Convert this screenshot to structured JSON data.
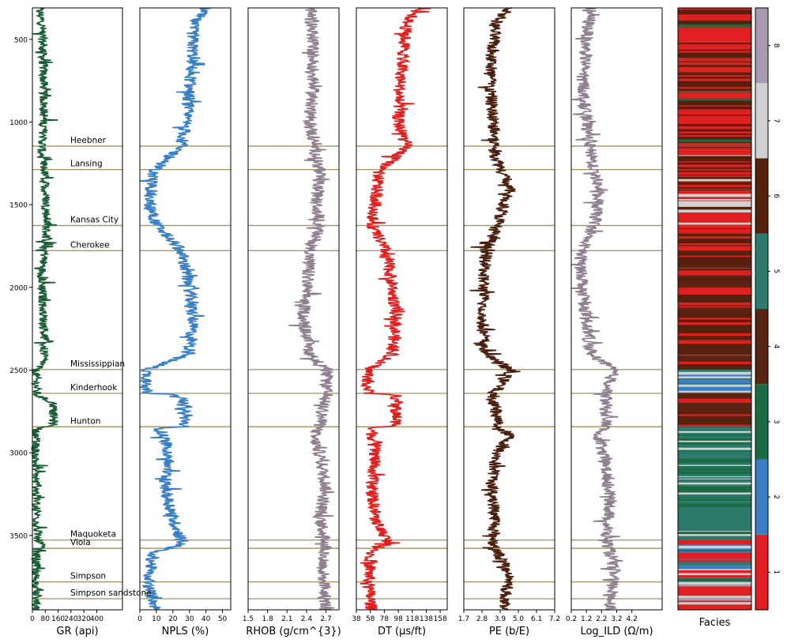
{
  "chart_data": {
    "type": "well-log",
    "depth_axis": {
      "inverted": true,
      "range": [
        3950,
        310
      ],
      "ticks": [
        500,
        1000,
        1500,
        2000,
        2500,
        3000,
        3500
      ],
      "tick_labels": [
        "500",
        "1000",
        "1500",
        "2000",
        "2500",
        "3000",
        "3500"
      ]
    },
    "tracks": [
      {
        "name": "GR",
        "xlabel": "GR (api)",
        "color": "#1b5e35",
        "xlim": [
          0,
          560
        ],
        "ticks": [
          0,
          80,
          160,
          240,
          320,
          400
        ],
        "tick_labels": [
          "0",
          "80",
          "160",
          "240",
          "320",
          "400"
        ],
        "profile": [
          [
            310,
            40
          ],
          [
            400,
            60
          ],
          [
            600,
            65
          ],
          [
            800,
            70
          ],
          [
            1000,
            72
          ],
          [
            1100,
            65
          ],
          [
            1200,
            55
          ],
          [
            1300,
            75
          ],
          [
            1400,
            80
          ],
          [
            1500,
            85
          ],
          [
            1600,
            90
          ],
          [
            1700,
            85
          ],
          [
            1780,
            80
          ],
          [
            1900,
            60
          ],
          [
            2100,
            65
          ],
          [
            2300,
            75
          ],
          [
            2450,
            70
          ],
          [
            2500,
            20
          ],
          [
            2600,
            25
          ],
          [
            2650,
            25
          ],
          [
            2700,
            130
          ],
          [
            2840,
            130
          ],
          [
            2850,
            20
          ],
          [
            3000,
            18
          ],
          [
            3200,
            22
          ],
          [
            3400,
            30
          ],
          [
            3520,
            30
          ],
          [
            3560,
            60
          ],
          [
            3600,
            25
          ],
          [
            3800,
            20
          ],
          [
            3950,
            20
          ]
        ]
      },
      {
        "name": "NPLS",
        "xlabel": "NPLS (%)",
        "color": "#3a7fc4",
        "xlim": [
          0,
          55
        ],
        "ticks": [
          0,
          10,
          20,
          30,
          40,
          50
        ],
        "tick_labels": [
          "0",
          "10",
          "20",
          "30",
          "40",
          "50"
        ],
        "profile": [
          [
            310,
            40
          ],
          [
            400,
            32
          ],
          [
            600,
            32
          ],
          [
            800,
            30
          ],
          [
            1000,
            28
          ],
          [
            1150,
            25
          ],
          [
            1300,
            8
          ],
          [
            1500,
            6
          ],
          [
            1620,
            10
          ],
          [
            1780,
            25
          ],
          [
            2000,
            30
          ],
          [
            2200,
            32
          ],
          [
            2400,
            30
          ],
          [
            2500,
            4
          ],
          [
            2640,
            5
          ],
          [
            2650,
            25
          ],
          [
            2840,
            28
          ],
          [
            2850,
            12
          ],
          [
            3000,
            18
          ],
          [
            3200,
            15
          ],
          [
            3400,
            20
          ],
          [
            3520,
            25
          ],
          [
            3560,
            25
          ],
          [
            3600,
            8
          ],
          [
            3800,
            5
          ],
          [
            3950,
            10
          ]
        ]
      },
      {
        "name": "RHOB",
        "xlabel": "RHOB (g/cm^{3})",
        "color": "#8f7f8f",
        "xlim": [
          1.5,
          2.9
        ],
        "ticks": [
          1.5,
          1.8,
          2.1,
          2.4,
          2.7
        ],
        "tick_labels": [
          "1.5",
          "1.8",
          "2.1",
          "2.4",
          "2.7"
        ],
        "profile": [
          [
            310,
            2.45
          ],
          [
            500,
            2.5
          ],
          [
            800,
            2.5
          ],
          [
            1000,
            2.45
          ],
          [
            1200,
            2.55
          ],
          [
            1300,
            2.6
          ],
          [
            1500,
            2.55
          ],
          [
            1620,
            2.6
          ],
          [
            1800,
            2.45
          ],
          [
            2000,
            2.4
          ],
          [
            2200,
            2.35
          ],
          [
            2400,
            2.45
          ],
          [
            2500,
            2.7
          ],
          [
            2650,
            2.7
          ],
          [
            2840,
            2.6
          ],
          [
            2900,
            2.5
          ],
          [
            3000,
            2.6
          ],
          [
            3200,
            2.7
          ],
          [
            3400,
            2.6
          ],
          [
            3550,
            2.7
          ],
          [
            3700,
            2.65
          ],
          [
            3950,
            2.7
          ]
        ]
      },
      {
        "name": "DT",
        "xlabel": "DT (µs/ft)",
        "color": "#e02020",
        "xlim": [
          38,
          168
        ],
        "ticks": [
          38,
          58,
          78,
          98,
          118,
          138,
          158
        ],
        "tick_labels": [
          "38",
          "58",
          "78",
          "98",
          "118",
          "138",
          "158"
        ],
        "profile": [
          [
            310,
            130
          ],
          [
            400,
            110
          ],
          [
            600,
            105
          ],
          [
            800,
            100
          ],
          [
            1000,
            98
          ],
          [
            1150,
            110
          ],
          [
            1300,
            70
          ],
          [
            1500,
            65
          ],
          [
            1620,
            60
          ],
          [
            1780,
            80
          ],
          [
            2000,
            90
          ],
          [
            2200,
            95
          ],
          [
            2400,
            90
          ],
          [
            2500,
            55
          ],
          [
            2640,
            55
          ],
          [
            2650,
            95
          ],
          [
            2840,
            95
          ],
          [
            2850,
            60
          ],
          [
            3000,
            65
          ],
          [
            3200,
            60
          ],
          [
            3400,
            65
          ],
          [
            3550,
            85
          ],
          [
            3600,
            60
          ],
          [
            3800,
            55
          ],
          [
            3950,
            60
          ]
        ]
      },
      {
        "name": "PE",
        "xlabel": "PE (b/E)",
        "color": "#4a2010",
        "xlim": [
          1.7,
          7.2
        ],
        "ticks": [
          1.7,
          2.8,
          3.9,
          5.0,
          6.1,
          7.2
        ],
        "tick_labels": [
          "1.7",
          "2.8",
          "3.9",
          "5.0",
          "6.1",
          "7.2"
        ],
        "profile": [
          [
            310,
            4.5
          ],
          [
            400,
            3.6
          ],
          [
            600,
            3.4
          ],
          [
            800,
            3.3
          ],
          [
            1000,
            3.5
          ],
          [
            1200,
            3.6
          ],
          [
            1400,
            4.5
          ],
          [
            1600,
            3.8
          ],
          [
            1800,
            3.0
          ],
          [
            2000,
            2.9
          ],
          [
            2200,
            2.8
          ],
          [
            2400,
            3.0
          ],
          [
            2500,
            4.5
          ],
          [
            2650,
            3.5
          ],
          [
            2840,
            3.8
          ],
          [
            2900,
            4.5
          ],
          [
            3000,
            3.7
          ],
          [
            3200,
            3.4
          ],
          [
            3400,
            3.6
          ],
          [
            3550,
            3.5
          ],
          [
            3750,
            4.5
          ],
          [
            3950,
            4.0
          ]
        ]
      },
      {
        "name": "Log_ILD",
        "xlabel": "Log_ILD (Ω/m)",
        "color": "#8f7f8f",
        "xlim": [
          0.2,
          6.2
        ],
        "ticks": [
          0.2,
          1.2,
          2.2,
          3.2,
          4.2
        ],
        "tick_labels": [
          "0.2",
          "1.2",
          "2.2",
          "3.2",
          "4.2"
        ],
        "profile": [
          [
            310,
            1.5
          ],
          [
            500,
            1.2
          ],
          [
            800,
            1.0
          ],
          [
            1000,
            1.2
          ],
          [
            1200,
            1.5
          ],
          [
            1400,
            2.0
          ],
          [
            1600,
            1.8
          ],
          [
            1800,
            0.8
          ],
          [
            2000,
            1.0
          ],
          [
            2200,
            1.2
          ],
          [
            2400,
            1.5
          ],
          [
            2500,
            3.0
          ],
          [
            2650,
            2.5
          ],
          [
            2840,
            2.5
          ],
          [
            2900,
            2.0
          ],
          [
            3100,
            2.5
          ],
          [
            3300,
            2.8
          ],
          [
            3500,
            2.5
          ],
          [
            3700,
            3.0
          ],
          [
            3950,
            2.8
          ]
        ]
      }
    ],
    "formation_tops": [
      {
        "name": "Heebner",
        "depth": 1146
      },
      {
        "name": "Lansing",
        "depth": 1288
      },
      {
        "name": "Kansas City",
        "depth": 1626
      },
      {
        "name": "Cherokee",
        "depth": 1778
      },
      {
        "name": "Mississippian",
        "depth": 2497
      },
      {
        "name": "Kinderhook",
        "depth": 2641
      },
      {
        "name": "Hunton",
        "depth": 2843
      },
      {
        "name": "Maquoketa",
        "depth": 3528
      },
      {
        "name": "Viola",
        "depth": 3578
      },
      {
        "name": "Simpson",
        "depth": 3781
      },
      {
        "name": "Simpson sandstone",
        "depth": 3883
      }
    ],
    "facies_track": {
      "xlabel": "Facies",
      "colorbar_ticks": [
        1,
        2,
        3,
        4,
        5,
        6,
        7,
        8
      ],
      "colorbar_tick_labels": [
        "1",
        "2",
        "3",
        "4",
        "5",
        "6",
        "7",
        "8"
      ],
      "colors": [
        "#e02020",
        "#3a7fc4",
        "#1b6b45",
        "#5a2412",
        "#2b7a6c",
        "#55200c",
        "#d0d0d0",
        "#a898b0"
      ],
      "intervals": [
        [
          310,
          1146,
          "mixed-red-brown-green"
        ],
        [
          1146,
          1288,
          "mixed-red-brown"
        ],
        [
          1288,
          1626,
          "red"
        ],
        [
          1626,
          1778,
          "red-brown"
        ],
        [
          1778,
          2497,
          "brown-red"
        ],
        [
          2497,
          2641,
          "blue-grey"
        ],
        [
          2641,
          2843,
          "brown"
        ],
        [
          2843,
          3528,
          "green-teal"
        ],
        [
          3528,
          3781,
          "mixed"
        ],
        [
          3781,
          3950,
          "red-grey"
        ]
      ]
    }
  },
  "title": "",
  "colors": {
    "top_line": "#a89a6a",
    "axis": "#000000",
    "background": "#ffffff"
  }
}
